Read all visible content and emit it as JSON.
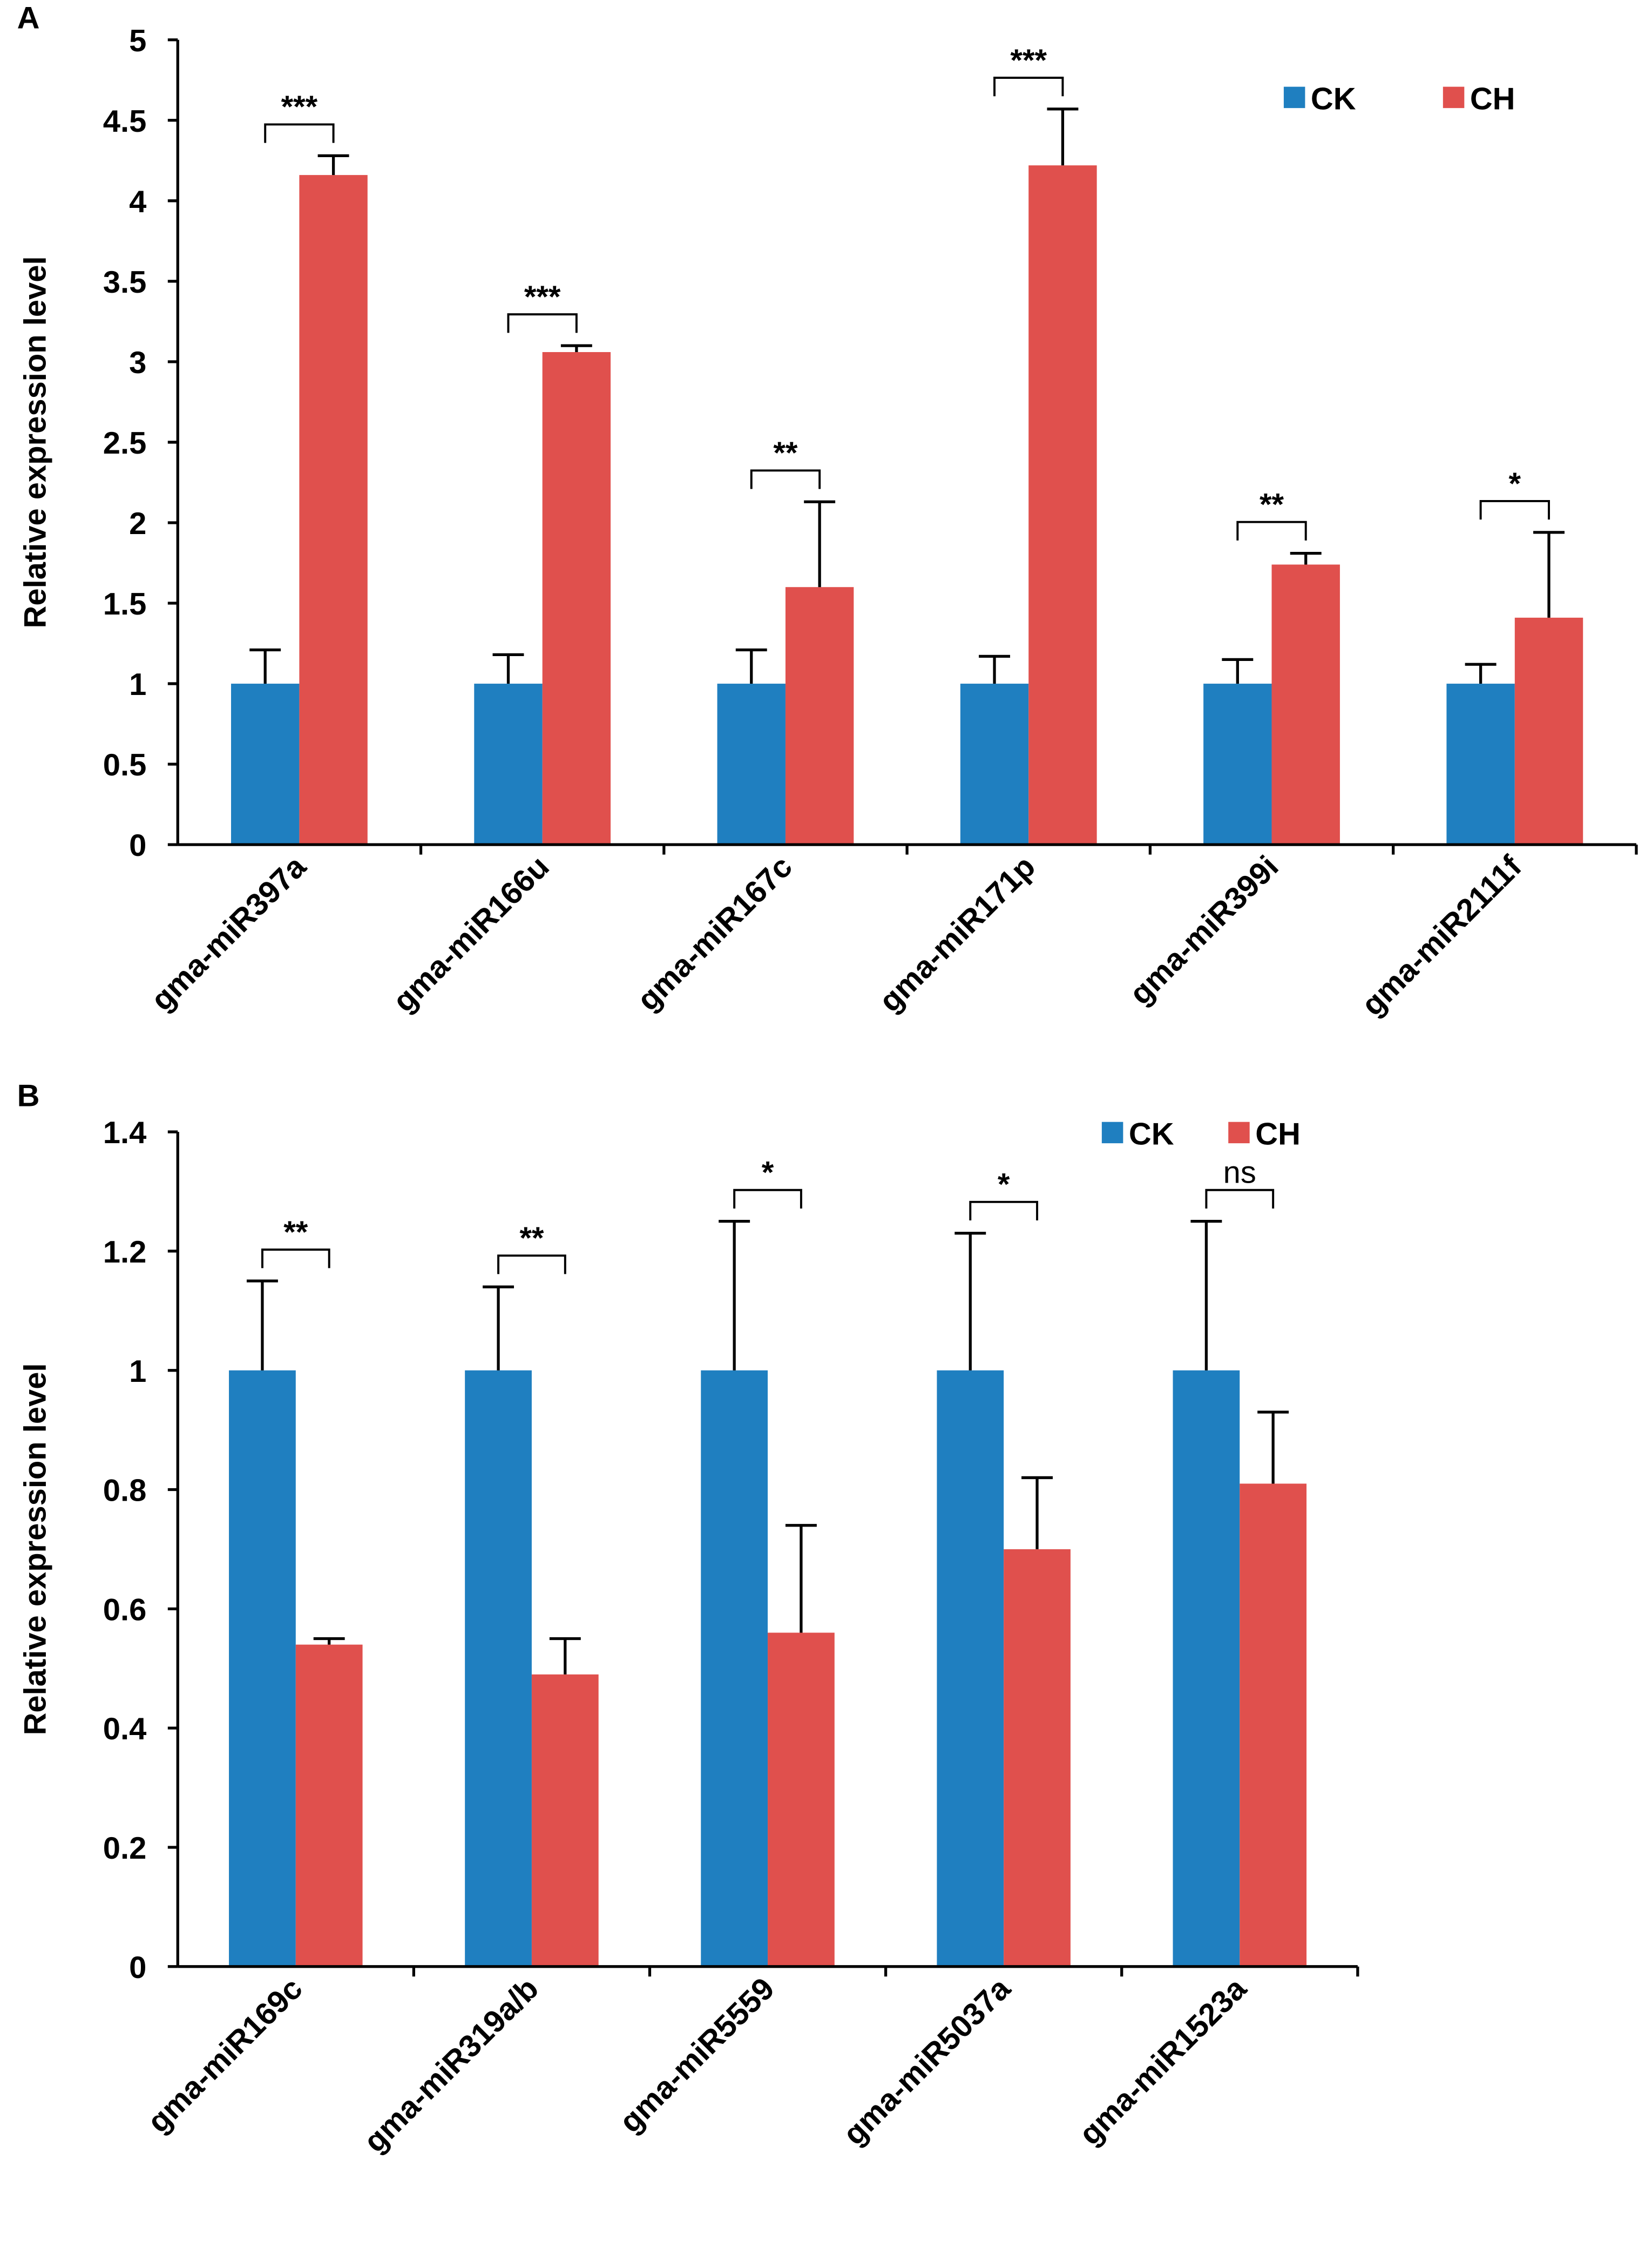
{
  "chart_data": [
    {
      "type": "bar",
      "panel": "A",
      "y_label": "Relative expression level",
      "categories": [
        "gma-miR397a",
        "gma-miR166u",
        "gma-miR167c",
        "gma-miR171p",
        "gma-miR399i",
        "gma-miR2111f"
      ],
      "series": [
        {
          "name": "CK",
          "color": "#1f7fc0",
          "values": [
            1,
            1,
            1,
            1,
            1,
            1
          ],
          "errors": [
            0.21,
            0.18,
            0.21,
            0.17,
            0.15,
            0.12
          ]
        },
        {
          "name": "CH",
          "color": "#e0504d",
          "values": [
            4.16,
            3.06,
            1.6,
            4.22,
            1.74,
            1.41
          ],
          "errors": [
            0.12,
            0.04,
            0.53,
            0.35,
            0.07,
            0.53
          ]
        }
      ],
      "annotations": [
        "***",
        "***",
        "**",
        "***",
        "**",
        "*"
      ],
      "ylim": [
        0,
        5
      ],
      "yticks": [
        0,
        0.5,
        1,
        1.5,
        2,
        2.5,
        3,
        3.5,
        4,
        4.5,
        5
      ],
      "legend": "top-right"
    },
    {
      "type": "bar",
      "panel": "B",
      "y_label": "Relative expression level",
      "categories": [
        "gma-miR169c",
        "gma-miR319a/b",
        "gma-miR5559",
        "gma-miR5037a",
        "gma-miR1523a"
      ],
      "series": [
        {
          "name": "CK",
          "color": "#1f7fc0",
          "values": [
            1,
            1,
            1,
            1,
            1
          ],
          "errors": [
            0.15,
            0.14,
            0.25,
            0.23,
            0.25
          ]
        },
        {
          "name": "CH",
          "color": "#e0504d",
          "values": [
            0.54,
            0.49,
            0.56,
            0.7,
            0.81
          ],
          "errors": [
            0.01,
            0.06,
            0.18,
            0.12,
            0.12
          ]
        }
      ],
      "annotations": [
        "**",
        "**",
        "*",
        "*",
        "ns"
      ],
      "ylim": [
        0,
        1.4
      ],
      "yticks": [
        0,
        0.2,
        0.4,
        0.6,
        0.8,
        1,
        1.2,
        1.4
      ],
      "legend": "top-right"
    }
  ]
}
